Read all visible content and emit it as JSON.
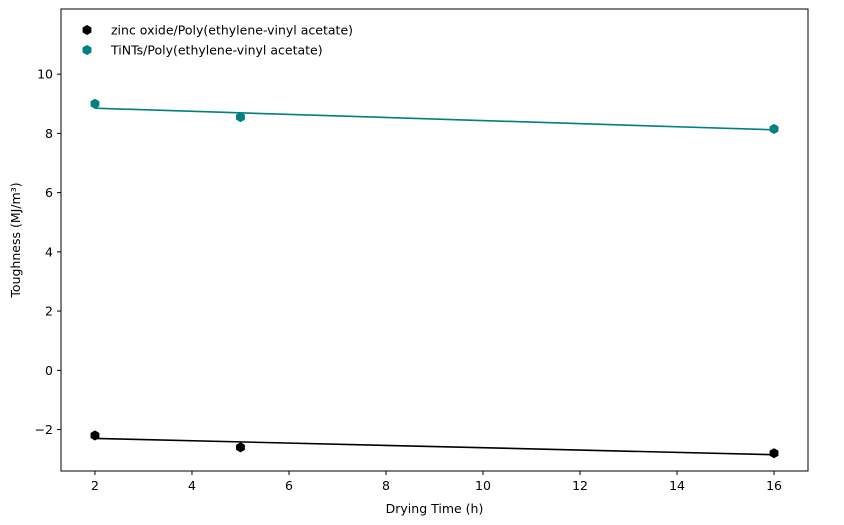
{
  "chart_data": {
    "type": "scatter",
    "title": "",
    "xlabel": "Drying Time (h)",
    "ylabel": "Toughness (MJ/m³)",
    "xlim": [
      1.3,
      16.7
    ],
    "ylim": [
      -3.4,
      12.2
    ],
    "xticks": [
      2,
      4,
      6,
      8,
      10,
      12,
      14,
      16
    ],
    "yticks": [
      -2,
      0,
      2,
      4,
      6,
      8,
      10
    ],
    "ytick_labels": [
      "−2",
      "0",
      "2",
      "4",
      "6",
      "8",
      "10"
    ],
    "grid": false,
    "legend_position": "top-left",
    "series": [
      {
        "name": "zinc oxide/Poly(ethylene-vinyl acetate)",
        "color": "#000000",
        "marker": "hexagon",
        "x": [
          2,
          5,
          16
        ],
        "y": [
          -2.2,
          -2.6,
          -2.8
        ],
        "fit": {
          "x": [
            2,
            16
          ],
          "y": [
            -2.3,
            -2.85
          ]
        }
      },
      {
        "name": "TiNTs/Poly(ethylene-vinyl acetate)",
        "color": "#008080",
        "marker": "hexagon",
        "x": [
          2,
          5,
          16
        ],
        "y": [
          9.0,
          8.55,
          8.15
        ],
        "fit": {
          "x": [
            2,
            16
          ],
          "y": [
            8.85,
            8.12
          ]
        }
      }
    ]
  }
}
